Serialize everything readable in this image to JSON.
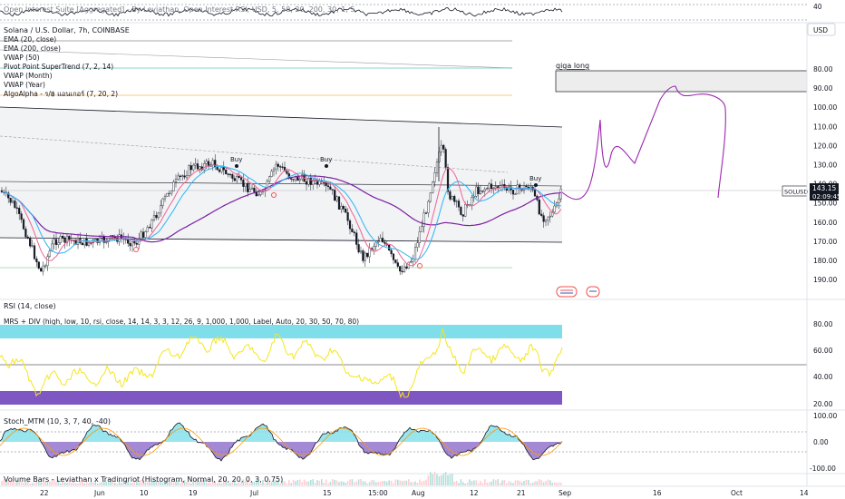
{
  "top_indicator": {
    "label": "Open Interest Suite [Aggregated] - By Leviathan, Open Interest RSI, USD, 5, 50, 20, 200, 30, 1, 5",
    "scale_value": "40"
  },
  "main": {
    "title": "Solana / U.S. Dollar, 7h, COINBASE",
    "currency_badge": "USD",
    "indicators": [
      "EMA (20, close)",
      "EMA (200, close)",
      "VWAP (50)",
      "Pivot Point SuperTrend (7, 2, 14)",
      "VWAP (Month)",
      "VWAP (Year)",
      "AlgoAlpha - ร/฿ แอนเกอร์ (7, 20, 2)"
    ],
    "annotation": "giga long",
    "buy_labels": [
      "Buy",
      "Buy",
      "Buy"
    ],
    "price_axis": [
      "80.00",
      "90.00",
      "100.00",
      "110.00",
      "120.00",
      "130.00",
      "140.00",
      "150.00",
      "160.00",
      "170.00",
      "180.00",
      "190.00"
    ],
    "symbol_tag": "SOLUSD",
    "last_price": "143.15",
    "countdown": "02:09:45"
  },
  "rsi_pane": {
    "label": "RSI (14, close)",
    "mrs_label": "MRS + DIV (high, low, 10, rsi, close, 14, 14, 3, 3, 12, 26, 9, 1,000, 1,000, Label, Auto, 20, 30, 50, 70, 80)",
    "axis": [
      "80.00",
      "60.00",
      "40.00",
      "20.00"
    ]
  },
  "stoch_pane": {
    "label": "Stoch_MTM (10, 3, 7, 40, -40)",
    "axis": [
      "100.00",
      "0.00",
      "-100.00"
    ]
  },
  "volume_pane": {
    "label": "Volume Bars - Leviathan x Tradingriot (Histogram, Normal, 20, 20, 0, 3, 0.75)"
  },
  "time_axis": [
    "22",
    "Jun",
    "10",
    "19",
    "Jul",
    "15",
    "15:00",
    "Aug",
    "12",
    "21",
    "Sep",
    "16",
    "Oct",
    "14"
  ],
  "colors": {
    "up": "#26a69a",
    "down": "#ef5350",
    "rsi": "#f5e61e",
    "ema20": "#f06292",
    "ema200": "#7b1fa2",
    "vwap": "#29b6f6",
    "rsi_high": "#80deea",
    "rsi_low": "#7e57c2"
  }
}
